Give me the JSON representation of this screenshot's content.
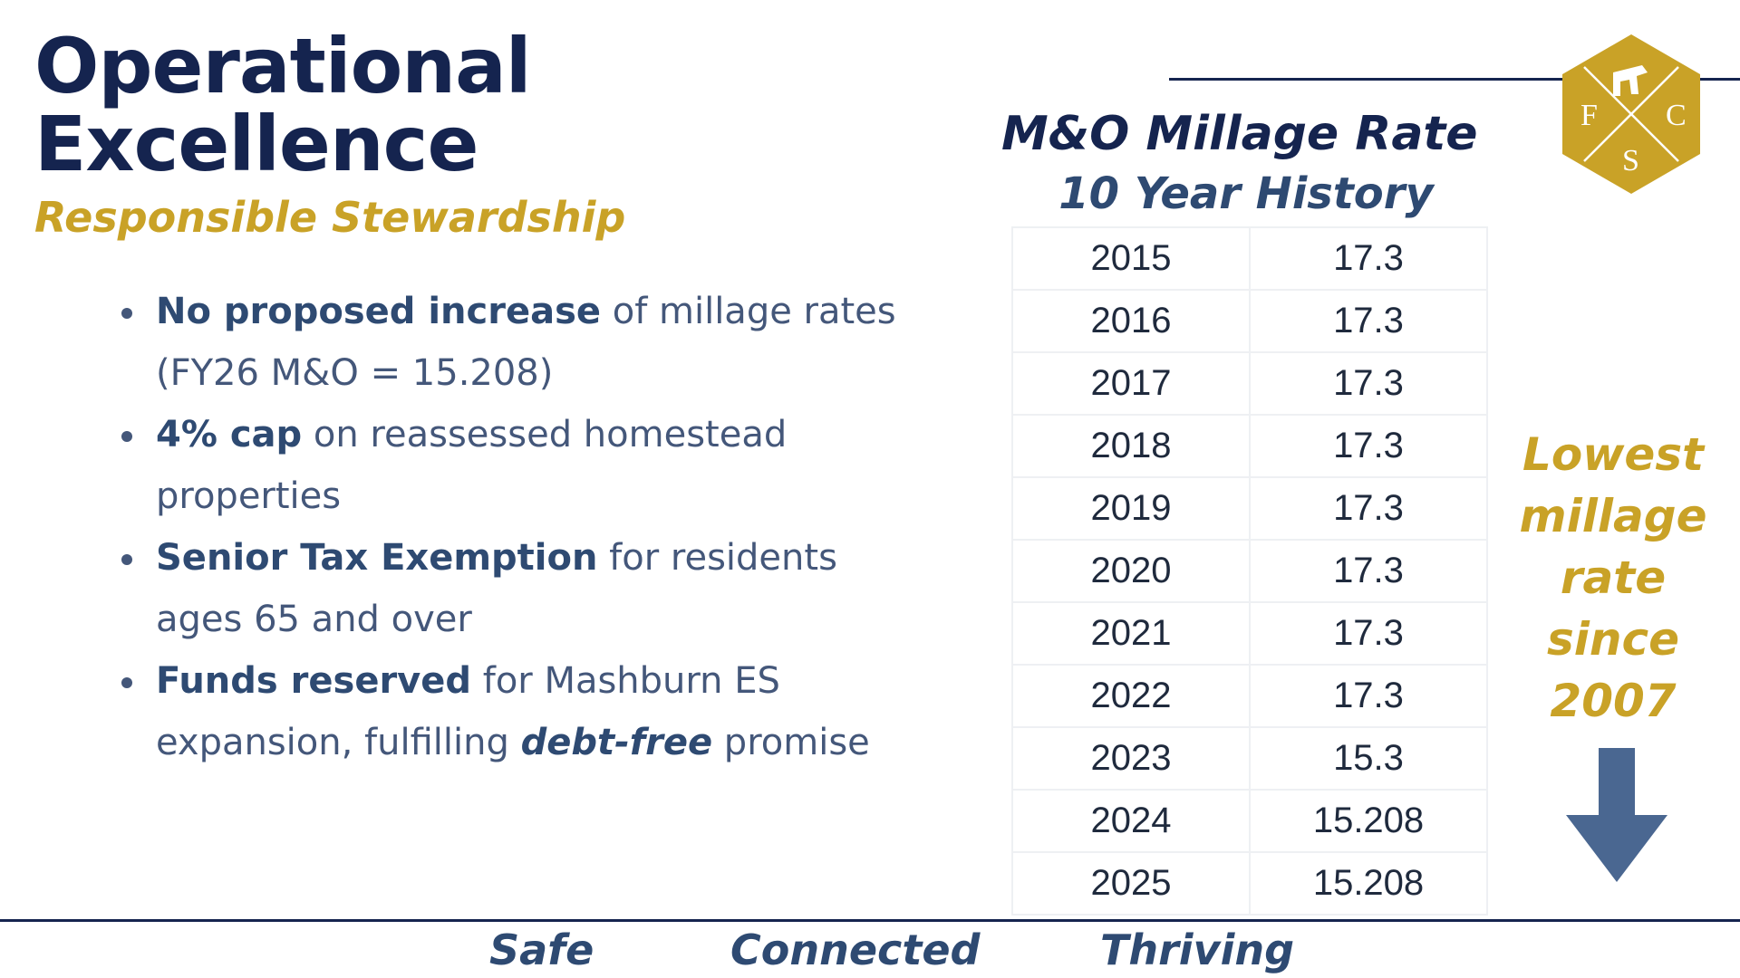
{
  "header": {
    "title_line1": "Operational",
    "title_line2": "Excellence",
    "subtitle": "Responsible Stewardship"
  },
  "bullets": [
    {
      "bold": "No proposed increase",
      "text": " of millage rates (FY26 M&O = 15.208)"
    },
    {
      "bold": "4% cap",
      "text": " on reassessed homestead properties"
    },
    {
      "bold": "Senior Tax Exemption",
      "text": " for residents ages 65 and over"
    },
    {
      "bold": "Funds reserved",
      "text": " for Mashburn ES expansion, fulfilling ",
      "emphasis": "debt-free",
      "text_after": " promise"
    }
  ],
  "millage_table": {
    "title": "M&O Millage Rate",
    "subtitle": "10 Year History",
    "rows": [
      {
        "year": "2015",
        "rate": "17.3"
      },
      {
        "year": "2016",
        "rate": "17.3"
      },
      {
        "year": "2017",
        "rate": "17.3"
      },
      {
        "year": "2018",
        "rate": "17.3"
      },
      {
        "year": "2019",
        "rate": "17.3"
      },
      {
        "year": "2020",
        "rate": "17.3"
      },
      {
        "year": "2021",
        "rate": "17.3"
      },
      {
        "year": "2022",
        "rate": "17.3"
      },
      {
        "year": "2023",
        "rate": "15.3"
      },
      {
        "year": "2024",
        "rate": "15.208"
      },
      {
        "year": "2025",
        "rate": "15.208"
      }
    ]
  },
  "side_note": {
    "lines": [
      "Lowest",
      "millage",
      "rate",
      "since",
      "2007"
    ],
    "icon": "down-arrow-icon"
  },
  "logo": {
    "letters": [
      "F",
      "C",
      "S"
    ],
    "icon": "school-district-logo-icon",
    "color": "#c9a227"
  },
  "footer": {
    "words": [
      "Safe",
      "Connected",
      "Thriving"
    ]
  },
  "colors": {
    "navy": "#15244f",
    "gold": "#c9a227",
    "slate_blue": "#44577a",
    "arrow": "#4a6791"
  }
}
